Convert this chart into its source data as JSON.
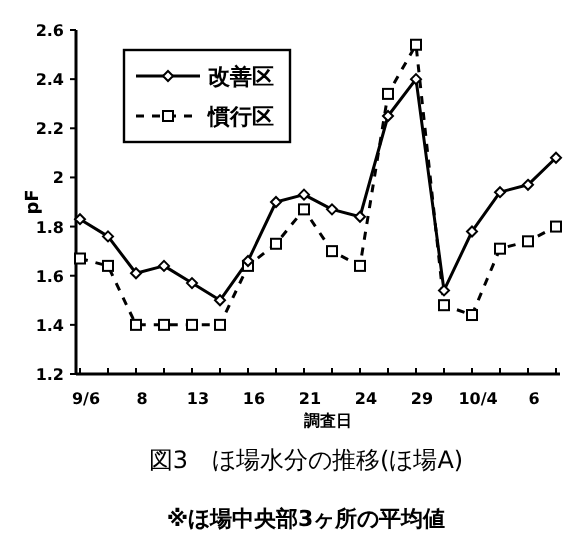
{
  "chart_data": {
    "type": "line",
    "title": "図3　ほ場水分の推移(ほ場A)",
    "xlabel": "調査日",
    "ylabel": "pF",
    "annotations": [
      "※ほ場中央部3ヶ所の平均値"
    ],
    "categories": [
      "9/6",
      null,
      "8",
      null,
      "13",
      null,
      "16",
      null,
      "21",
      null,
      "24",
      null,
      "29",
      null,
      "10/4",
      null,
      "6",
      null
    ],
    "ylim": [
      1.2,
      2.6
    ],
    "yticks": [
      1.2,
      1.4,
      1.6,
      1.8,
      2,
      2.2,
      2.4,
      2.6
    ],
    "legend": "top left",
    "series": [
      {
        "name": "改善区",
        "color": "#000000",
        "marker": "diamond",
        "line_style": "solid",
        "values": [
          1.83,
          1.76,
          1.61,
          1.64,
          1.57,
          1.5,
          1.66,
          1.9,
          1.93,
          1.87,
          1.84,
          2.25,
          2.4,
          1.54,
          1.78,
          1.94,
          1.97,
          2.08
        ]
      },
      {
        "name": "慣行区",
        "color": "#000000",
        "marker": "square",
        "line_style": "dashed",
        "values": [
          1.67,
          1.64,
          1.4,
          1.4,
          1.4,
          1.4,
          1.64,
          1.73,
          1.87,
          1.7,
          1.64,
          2.34,
          2.54,
          1.48,
          1.44,
          1.71,
          1.74,
          1.8
        ]
      }
    ]
  }
}
